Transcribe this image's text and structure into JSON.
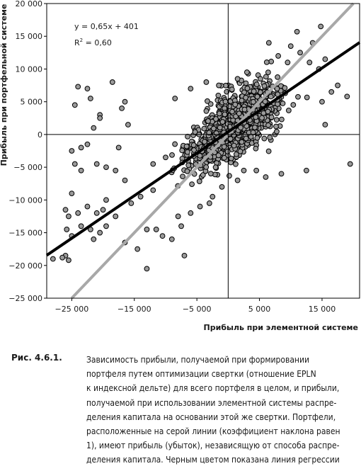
{
  "chart_data": {
    "type": "scatter",
    "title": "",
    "xlabel": "Прибыль при элементной системе",
    "ylabel": "Прибыль при портфельной системе",
    "xlim": [
      -29000,
      21000
    ],
    "ylim": [
      -25000,
      20000
    ],
    "x_ticks": [
      -25000,
      -15000,
      -5000,
      5000,
      15000
    ],
    "x_tick_labels": [
      "−25 000",
      "−15 000",
      "−5 000",
      "5 000",
      "15 000"
    ],
    "y_ticks": [
      -25000,
      -20000,
      -15000,
      -10000,
      -5000,
      0,
      5000,
      10000,
      15000,
      20000
    ],
    "y_tick_labels": [
      "−25 000",
      "−20 000",
      "−15 000",
      "−10 000",
      "−5 000",
      "0",
      "5 000",
      "10 000",
      "15 000",
      "20 000"
    ],
    "grid": false,
    "cluster": {
      "center": [
        1000,
        1500
      ],
      "spread_x": 5200,
      "spread_y": 3400,
      "count": 1000
    },
    "points": [
      [
        -28000,
        -19000
      ],
      [
        -26000,
        -18500
      ],
      [
        -25500,
        -19200
      ],
      [
        -26500,
        -18800
      ],
      [
        -25800,
        -14500
      ],
      [
        -25000,
        -15500
      ],
      [
        -24000,
        -12000
      ],
      [
        -25500,
        -12500
      ],
      [
        -26000,
        -11500
      ],
      [
        -25000,
        -9000
      ],
      [
        -23500,
        -14000
      ],
      [
        -22000,
        -14500
      ],
      [
        -21500,
        -16000
      ],
      [
        -20500,
        -15000
      ],
      [
        -19500,
        -14000
      ],
      [
        -20000,
        -11500
      ],
      [
        -21000,
        -12000
      ],
      [
        -22500,
        -11000
      ],
      [
        -23500,
        -5500
      ],
      [
        -24500,
        -4500
      ],
      [
        -25000,
        -2500
      ],
      [
        -23500,
        -2000
      ],
      [
        -22500,
        -1500
      ],
      [
        -21500,
        1000
      ],
      [
        -20500,
        3000
      ],
      [
        -21000,
        -4500
      ],
      [
        -19500,
        -5000
      ],
      [
        -18000,
        -5500
      ],
      [
        -17500,
        -2000
      ],
      [
        -16000,
        1500
      ],
      [
        -17000,
        4000
      ],
      [
        -16500,
        5000
      ],
      [
        -18500,
        8000
      ],
      [
        -22500,
        7000
      ],
      [
        -24000,
        7300
      ],
      [
        -24500,
        4500
      ],
      [
        -19500,
        -10000
      ],
      [
        -18000,
        -12500
      ],
      [
        -16500,
        -16500
      ],
      [
        -14500,
        -17500
      ],
      [
        -13000,
        -14500
      ],
      [
        -11500,
        -14500
      ],
      [
        -13000,
        -20500
      ],
      [
        -7000,
        -18500
      ],
      [
        -10500,
        -15500
      ],
      [
        -9000,
        -16000
      ],
      [
        -7500,
        -14000
      ],
      [
        -22000,
        5500
      ],
      [
        -20500,
        2500
      ],
      [
        -16500,
        -7000
      ],
      [
        19500,
        -4500
      ],
      [
        12500,
        -5500
      ],
      [
        15500,
        1500
      ],
      [
        15000,
        5000
      ],
      [
        16500,
        6500
      ],
      [
        17500,
        7500
      ],
      [
        19000,
        5800
      ],
      [
        14500,
        10000
      ],
      [
        13000,
        11000
      ],
      [
        15500,
        11500
      ],
      [
        11000,
        15700
      ],
      [
        13500,
        14000
      ],
      [
        14800,
        16500
      ],
      [
        8500,
        -6000
      ],
      [
        6000,
        -6500
      ],
      [
        4500,
        -5500
      ],
      [
        2500,
        -5500
      ],
      [
        1500,
        -7000
      ],
      [
        -1000,
        -8000
      ],
      [
        -2500,
        -9500
      ],
      [
        -3000,
        -10500
      ],
      [
        -4500,
        -11000
      ],
      [
        -6000,
        -12000
      ],
      [
        -8000,
        -12500
      ],
      [
        3000,
        9500
      ],
      [
        1500,
        8500
      ],
      [
        -1500,
        7500
      ],
      [
        -3500,
        8000
      ],
      [
        -6000,
        7000
      ],
      [
        -8500,
        5500
      ],
      [
        8000,
        12000
      ],
      [
        10000,
        13500
      ],
      [
        6500,
        14000
      ],
      [
        9500,
        11000
      ],
      [
        11500,
        12500
      ],
      [
        -12000,
        -8500
      ],
      [
        -14000,
        -9500
      ],
      [
        -15500,
        -10500
      ],
      [
        -10000,
        -3500
      ],
      [
        -12000,
        -4500
      ]
    ],
    "regression": {
      "slope": 0.65,
      "intercept": 401,
      "x_range": [
        -29000,
        21000
      ]
    },
    "identity_line": {
      "slope": 1,
      "intercept": 0
    },
    "annotations": [
      "y = 0,65x + 401",
      "R",
      "2",
      " = 0,60"
    ]
  },
  "caption": {
    "label": "Рис. 4.6.1.",
    "lines": [
      "Зависимость прибыли, получаемой при формировании",
      "портфеля путем оптимизации свертки (отношение EPLN",
      "к индексной дельте) для всего портфеля в целом, и прибыли,",
      "получаемой при использовании элементной системы распре-",
      "деления капитала на основании этой же свертки. Портфели,",
      "расположенные на серой линии (коэффициент наклона равен",
      "1), имеют прибыль (убыток), независящую от способа распре-",
      "деления капитала. Черным цветом показана линия регрессии"
    ]
  },
  "colors": {
    "points": "#9a9a9a",
    "regression": "#000000",
    "identity": "#a8a8a8",
    "frame": "#000000"
  }
}
